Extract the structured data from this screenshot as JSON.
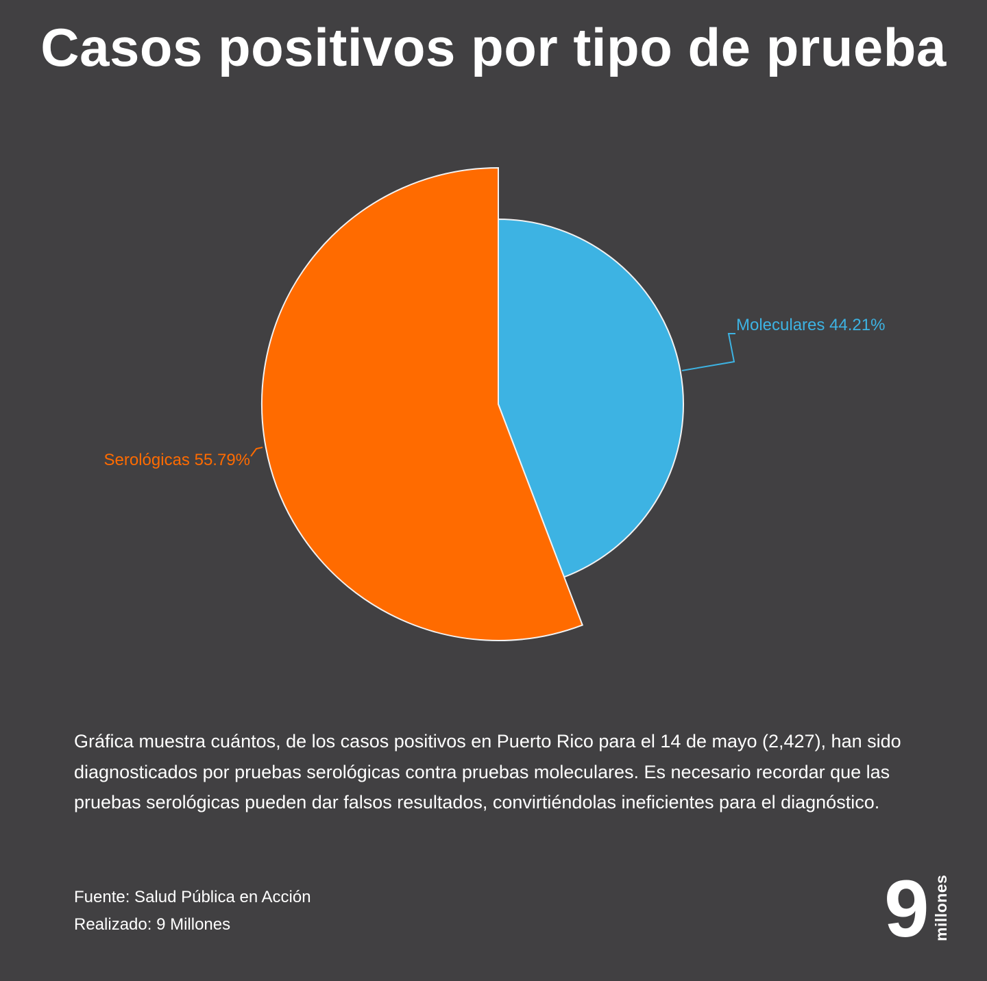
{
  "title": "Casos positivos por tipo de prueba",
  "chart_data": {
    "type": "pie",
    "categories": [
      "Moleculares",
      "Serológicas"
    ],
    "values": [
      44.21,
      55.79
    ],
    "labels": [
      "Moleculares 44.21%",
      "Serológicas 55.79%"
    ],
    "colors": [
      "#3DB3E3",
      "#FF6B00"
    ],
    "start_angle": "12 o'clock",
    "direction": "clockwise",
    "exploded": "Serológicas",
    "legend": "none"
  },
  "description": "Gráfica muestra cuántos, de los casos positivos en Puerto Rico para el 14 de mayo (2,427), han sido diagnosticados por pruebas serológicas contra pruebas moleculares. Es necesario recordar que las pruebas serológicas pueden dar falsos resultados, convirtiéndolas ineficientes para el diagnóstico.",
  "source": {
    "fuente": "Fuente: Salud Pública en Acción",
    "realizado": "Realizado: 9 Millones"
  },
  "logo": {
    "numeral": "9",
    "word": "millones"
  }
}
